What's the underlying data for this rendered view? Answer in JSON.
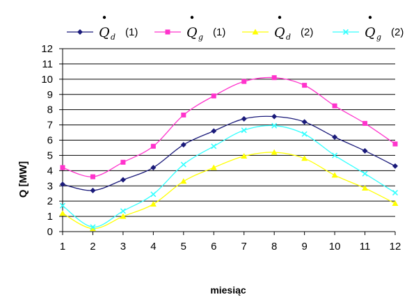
{
  "chart_data": {
    "type": "line",
    "title": "",
    "xlabel": "miesiąc",
    "ylabel": "Q [MW]",
    "x": [
      1,
      2,
      3,
      4,
      5,
      6,
      7,
      8,
      9,
      10,
      11,
      12
    ],
    "xlim": [
      1,
      12
    ],
    "ylim": [
      0,
      12
    ],
    "yticks": [
      0,
      1,
      2,
      3,
      4,
      5,
      6,
      7,
      8,
      9,
      10,
      11,
      12
    ],
    "grid": "horizontal",
    "legend_position": "top",
    "smooth": true,
    "series": [
      {
        "symbol": "Q",
        "subscript": "d",
        "suffix": "(1)",
        "color": "#1a1a7a",
        "marker": "diamond",
        "values": [
          3.1,
          2.7,
          3.4,
          4.2,
          5.7,
          6.6,
          7.4,
          7.55,
          7.2,
          6.2,
          5.3,
          4.3
        ]
      },
      {
        "symbol": "Q",
        "subscript": "g",
        "suffix": "(1)",
        "color": "#ff33cc",
        "marker": "square",
        "values": [
          4.2,
          3.6,
          4.55,
          5.6,
          7.65,
          8.9,
          9.85,
          10.1,
          9.6,
          8.25,
          7.1,
          5.75
        ]
      },
      {
        "symbol": "Q",
        "subscript": "d",
        "suffix": "(2)",
        "color": "#ffff00",
        "marker": "triangle",
        "values": [
          1.2,
          0.2,
          1.0,
          1.8,
          3.3,
          4.2,
          4.95,
          5.2,
          4.8,
          3.7,
          2.85,
          1.85
        ]
      },
      {
        "symbol": "Q",
        "subscript": "g",
        "suffix": "(2)",
        "color": "#33ffff",
        "marker": "x",
        "values": [
          1.7,
          0.3,
          1.35,
          2.45,
          4.4,
          5.6,
          6.65,
          6.95,
          6.4,
          5.0,
          3.8,
          2.55
        ]
      }
    ]
  }
}
